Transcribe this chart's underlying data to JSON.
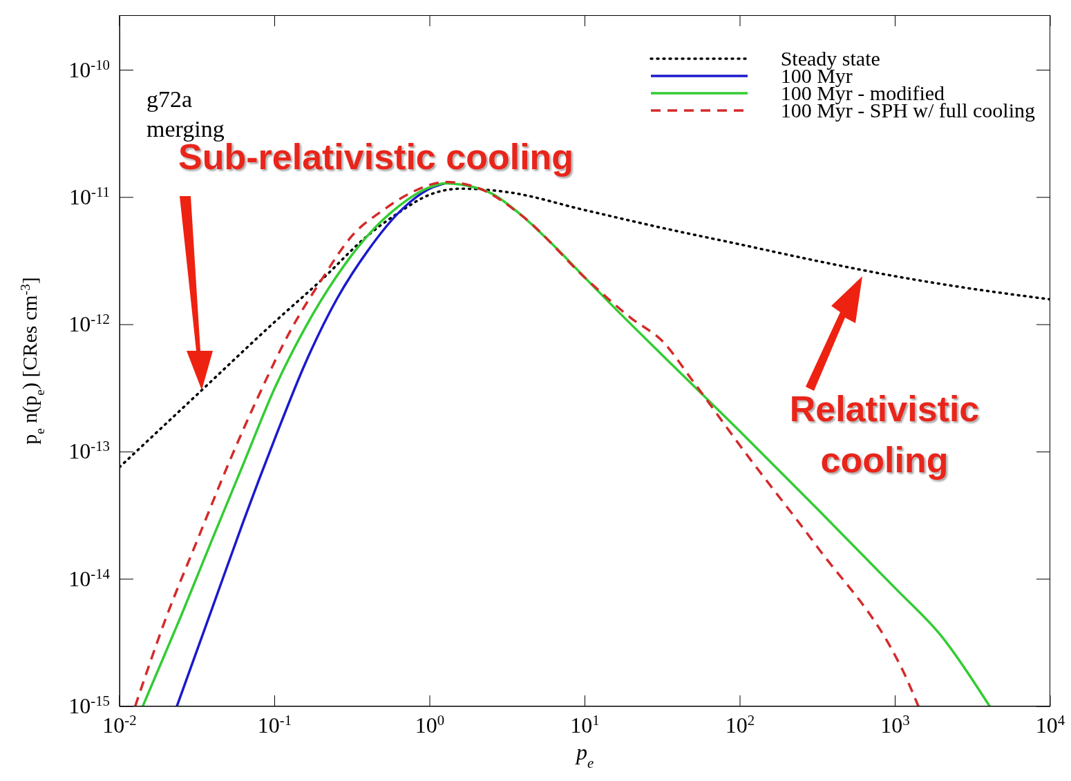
{
  "chart_data": {
    "type": "line",
    "xlabel": "p$_{e}$",
    "ylabel": "p$_{e}$ n(p$_{e}$) [CRes cm$^{-3}$]",
    "log": "xy",
    "grid": false,
    "legend": "top right",
    "marker": "none",
    "xlim": [
      0.01,
      10000
    ],
    "ylim": [
      1e-15,
      2.7e-10
    ],
    "xticks": [
      {
        "value": 0.01,
        "label": "10$^{-2}$"
      },
      {
        "value": 0.1,
        "label": "10$^{-1}$"
      },
      {
        "value": 1,
        "label": "10$^{0}$"
      },
      {
        "value": 10,
        "label": "10$^{1}$"
      },
      {
        "value": 100,
        "label": "10$^{2}$"
      },
      {
        "value": 1000,
        "label": "10$^{3}$"
      },
      {
        "value": 10000,
        "label": "10$^{4}$"
      }
    ],
    "yticks": [
      {
        "value": 1e-15,
        "label": "10$^{-15}$"
      },
      {
        "value": 1e-14,
        "label": "10$^{-14}$"
      },
      {
        "value": 1e-13,
        "label": "10$^{-13}$"
      },
      {
        "value": 1e-12,
        "label": "10$^{-12}$"
      },
      {
        "value": 1e-11,
        "label": "10$^{-11}$"
      },
      {
        "value": 1e-10,
        "label": "10$^{-10}$"
      }
    ],
    "annotations": [
      "g72a",
      "merging",
      "Sub-relativistic cooling",
      "Relativistic cooling"
    ],
    "series": [
      {
        "name": "Steady state",
        "color": "#000000",
        "line_style": "dotted",
        "x": [
          0.01,
          0.0316,
          0.1,
          0.2,
          0.398,
          0.631,
          1,
          1.585,
          3.16,
          10,
          31.6,
          100,
          316,
          1000,
          3160,
          10000
        ],
        "values": [
          7.59e-14,
          2.82e-13,
          1.05e-12,
          2.24e-12,
          5.01e-12,
          7.59e-12,
          1.05e-11,
          1.17e-11,
          1.1e-11,
          7.94e-12,
          5.75e-12,
          4.27e-12,
          3.16e-12,
          2.4e-12,
          1.91e-12,
          1.58e-12
        ]
      },
      {
        "name": "100 Myr",
        "color": "#1a1acc",
        "line_style": "solid",
        "x": [
          0.0234,
          0.0398,
          0.0631,
          0.1,
          0.158,
          0.251,
          0.398,
          0.631,
          1,
          1.259
        ],
        "values": [
          1e-15,
          6.03e-15,
          2.88e-14,
          1.26e-13,
          5.01e-13,
          1.58e-12,
          3.8e-12,
          7.59e-12,
          1.17e-11,
          1.29e-11
        ]
      },
      {
        "name": "100 Myr - modified",
        "color": "#33cc33",
        "line_style": "solid",
        "x": [
          0.0141,
          0.0251,
          0.0398,
          0.0631,
          0.1,
          0.158,
          0.251,
          0.398,
          0.631,
          1,
          1.259,
          1.585,
          2.512,
          3.98,
          6.31,
          10,
          15.85,
          31.6,
          100,
          316,
          1000,
          1995,
          4074
        ],
        "values": [
          1e-15,
          5.25e-15,
          2.09e-14,
          8.13e-14,
          3.16e-13,
          9.55e-13,
          2.4e-12,
          5.01e-12,
          8.51e-12,
          1.2e-11,
          1.29e-11,
          1.26e-11,
          1.07e-11,
          7.08e-12,
          4.17e-12,
          2.34e-12,
          1.32e-12,
          5.75e-13,
          1.45e-13,
          3.55e-14,
          8.51e-15,
          3.55e-15,
          1e-15
        ]
      },
      {
        "name": "100 Myr - SPH w/ full cooling",
        "color": "#d42a2a",
        "line_style": "dashed",
        "x": [
          0.0126,
          0.02,
          0.0316,
          0.0501,
          0.0794,
          0.126,
          0.2,
          0.316,
          0.501,
          0.794,
          1.259,
          1.995,
          3.98,
          10,
          19.95,
          31.6,
          50.1,
          100,
          316,
          1000,
          1122,
          1413
        ],
        "values": [
          1e-15,
          5.01e-15,
          2e-14,
          7.94e-14,
          2.82e-13,
          8.91e-13,
          2.24e-12,
          5.01e-12,
          7.94e-12,
          1.12e-11,
          1.32e-11,
          1.2e-11,
          7.08e-12,
          2.34e-12,
          1.12e-12,
          7.41e-13,
          3.55e-13,
          1.12e-13,
          1.78e-14,
          2.51e-15,
          1.91e-15,
          1e-15
        ]
      }
    ]
  }
}
